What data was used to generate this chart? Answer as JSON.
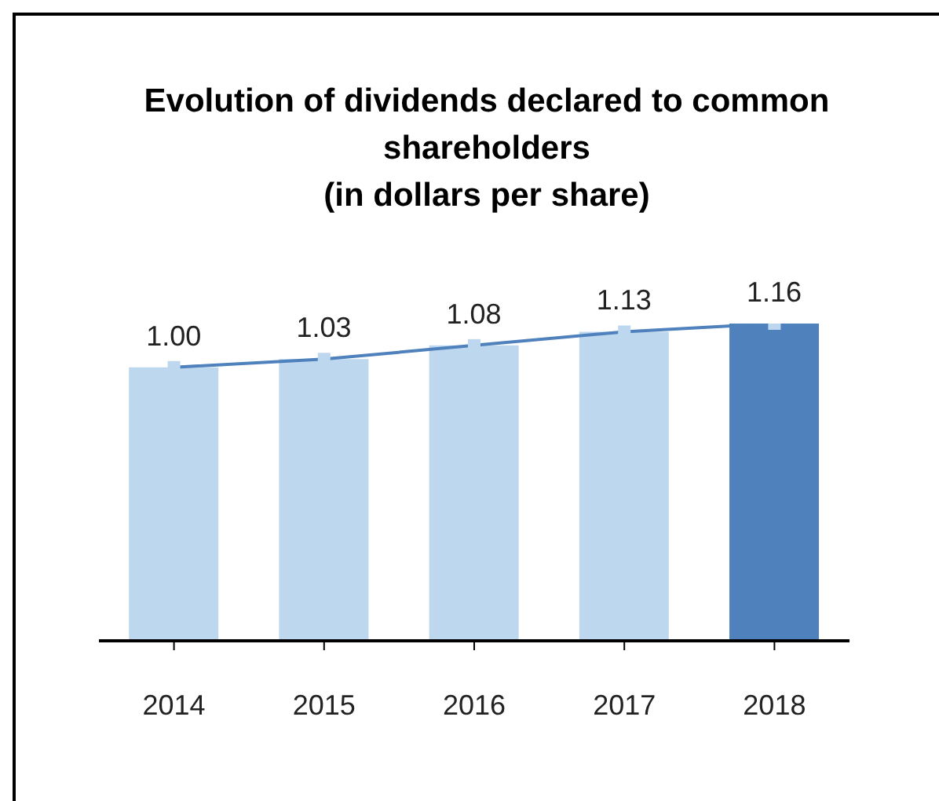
{
  "chart_data": {
    "type": "bar",
    "title": "Evolution of dividends declared to common shareholders\n(in dollars per share)",
    "categories": [
      "2014",
      "2015",
      "2016",
      "2017",
      "2018"
    ],
    "series": [
      {
        "colors": [
          "#bdd7ee",
          "#bdd7ee",
          "#bdd7ee",
          "#bdd7ee",
          "#4f81bd"
        ],
        "values": [
          1.0,
          1.03,
          1.08,
          1.13,
          1.16
        ],
        "value_labels": [
          "1.00",
          "1.03",
          "1.08",
          "1.13",
          "1.16"
        ]
      },
      {
        "type": "line",
        "color": "#4f81bd",
        "values": [
          1.0,
          1.03,
          1.08,
          1.13,
          1.16
        ]
      }
    ],
    "marker": "square"
  }
}
